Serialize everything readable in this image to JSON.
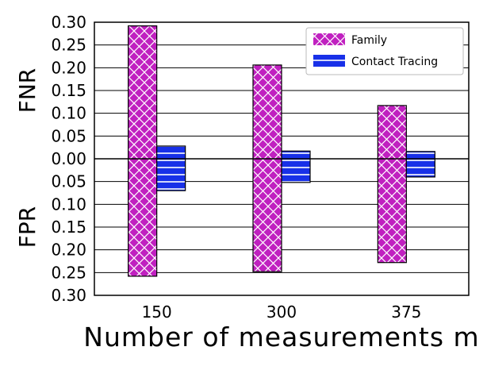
{
  "chart_data": {
    "type": "bar",
    "categories": [
      "150",
      "300",
      "375"
    ],
    "xlabel": "Number of measurements m",
    "ylabel_top": "FNR",
    "ylabel_bottom": "FPR",
    "ylim": [
      -0.3,
      0.3
    ],
    "yticks": [
      {
        "value": 0.3,
        "label": "0.30"
      },
      {
        "value": 0.25,
        "label": "0.25"
      },
      {
        "value": 0.2,
        "label": "0.20"
      },
      {
        "value": 0.15,
        "label": "0.15"
      },
      {
        "value": 0.1,
        "label": "0.10"
      },
      {
        "value": 0.05,
        "label": "0.05"
      },
      {
        "value": 0.0,
        "label": "0.00"
      },
      {
        "value": -0.05,
        "label": "0.05"
      },
      {
        "value": -0.1,
        "label": "0.10"
      },
      {
        "value": -0.15,
        "label": "0.15"
      },
      {
        "value": -0.2,
        "label": "0.20"
      },
      {
        "value": -0.25,
        "label": "0.25"
      },
      {
        "value": -0.3,
        "label": "0.30"
      }
    ],
    "grid": "horizontal",
    "legend_position": "top-right",
    "series": [
      {
        "name": "Family",
        "fnr": [
          0.292,
          0.206,
          0.117
        ],
        "fpr": [
          0.258,
          0.248,
          0.228
        ],
        "color": "#c020c0",
        "pattern": "crosshatch"
      },
      {
        "name": "Contact Tracing",
        "fnr": [
          0.028,
          0.017,
          0.016
        ],
        "fpr": [
          0.07,
          0.052,
          0.04
        ],
        "color": "#1830e8",
        "pattern": "horizontal"
      }
    ]
  }
}
